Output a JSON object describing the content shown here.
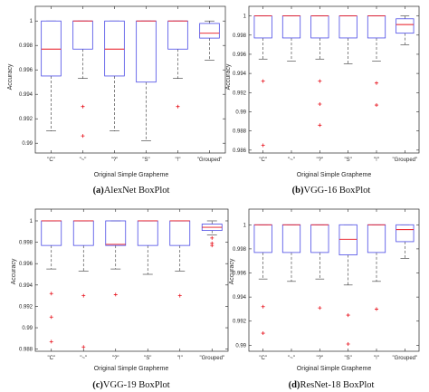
{
  "colors": {
    "box": "#4a4ae6",
    "median": "#e8141e",
    "whisker": "#333333",
    "outlier": "#e8141e"
  },
  "chart_data": [
    {
      "type": "box",
      "caption_letter": "(a)",
      "caption_text": "AlexNet BoxPlot",
      "xlabel": "Original Simple Grapheme",
      "ylabel": "Accuracy",
      "ylim": [
        0.9892,
        1.0012
      ],
      "yticks": [
        0.99,
        0.992,
        0.994,
        0.996,
        0.998,
        1
      ],
      "ytick_labels": [
        "0.99",
        "0.992",
        "0.994",
        "0.996",
        "0.998",
        "1"
      ],
      "categories": [
        "\"C\"",
        "\"~\"",
        "\"?\"",
        "\"S\"",
        "\"!\"",
        "\"Grouped\""
      ],
      "boxes": [
        {
          "whisker_low": 0.991,
          "q1": 0.9955,
          "median": 0.9977,
          "q3": 1.0,
          "whisker_high": 1.0,
          "outliers": []
        },
        {
          "whisker_low": 0.9953,
          "q1": 0.9977,
          "median": 1.0,
          "q3": 1.0,
          "whisker_high": 1.0,
          "outliers": [
            0.993,
            0.9906
          ]
        },
        {
          "whisker_low": 0.991,
          "q1": 0.9955,
          "median": 0.9977,
          "q3": 1.0,
          "whisker_high": 1.0,
          "outliers": []
        },
        {
          "whisker_low": 0.9902,
          "q1": 0.995,
          "median": 1.0,
          "q3": 1.0,
          "whisker_high": 1.0,
          "outliers": []
        },
        {
          "whisker_low": 0.9953,
          "q1": 0.9977,
          "median": 1.0,
          "q3": 1.0,
          "whisker_high": 1.0,
          "outliers": [
            0.993
          ]
        },
        {
          "whisker_low": 0.9968,
          "q1": 0.9986,
          "median": 0.999,
          "q3": 0.9998,
          "whisker_high": 1.0,
          "outliers": []
        }
      ]
    },
    {
      "type": "box",
      "caption_letter": "(b)",
      "caption_text": "VGG-16 BoxPlot",
      "xlabel": "Original Simple Grapheme",
      "ylabel": "Accuracy",
      "ylim": [
        0.9857,
        1.001
      ],
      "yticks": [
        0.986,
        0.988,
        0.99,
        0.992,
        0.994,
        0.996,
        0.998,
        1
      ],
      "ytick_labels": [
        "0.986",
        "0.988",
        "0.99",
        "0.992",
        "0.994",
        "0.996",
        "0.998",
        "1"
      ],
      "categories": [
        "\"C\"",
        "\"~\"",
        "\"?\"",
        "\"S\"",
        "\"!\"",
        "\"Grouped\""
      ],
      "boxes": [
        {
          "whisker_low": 0.9955,
          "q1": 0.9977,
          "median": 1.0,
          "q3": 1.0,
          "whisker_high": 1.0,
          "outliers": [
            0.9932,
            0.9865
          ]
        },
        {
          "whisker_low": 0.9953,
          "q1": 0.9977,
          "median": 1.0,
          "q3": 1.0,
          "whisker_high": 1.0,
          "outliers": []
        },
        {
          "whisker_low": 0.9955,
          "q1": 0.9977,
          "median": 1.0,
          "q3": 1.0,
          "whisker_high": 1.0,
          "outliers": [
            0.9932,
            0.9908,
            0.9886
          ]
        },
        {
          "whisker_low": 0.995,
          "q1": 0.9977,
          "median": 1.0,
          "q3": 1.0,
          "whisker_high": 1.0,
          "outliers": []
        },
        {
          "whisker_low": 0.9953,
          "q1": 0.9977,
          "median": 1.0,
          "q3": 1.0,
          "whisker_high": 1.0,
          "outliers": [
            0.993,
            0.9907
          ]
        },
        {
          "whisker_low": 0.997,
          "q1": 0.9982,
          "median": 0.9991,
          "q3": 0.9997,
          "whisker_high": 1.0,
          "outliers": []
        }
      ]
    },
    {
      "type": "box",
      "caption_letter": "(c)",
      "caption_text": "VGG-19 BoxPlot",
      "xlabel": "Original Simple Grapheme",
      "ylabel": "Accuracy",
      "ylim": [
        0.9878,
        1.0011
      ],
      "yticks": [
        0.988,
        0.99,
        0.992,
        0.994,
        0.996,
        0.998,
        1
      ],
      "ytick_labels": [
        "0.988",
        "0.99",
        "0.992",
        "0.994",
        "0.996",
        "0.998",
        "1"
      ],
      "categories": [
        "\"C\"",
        "\"~\"",
        "\"?\"",
        "\"S\"",
        "\"!\"",
        "\"Grouped\""
      ],
      "boxes": [
        {
          "whisker_low": 0.9955,
          "q1": 0.9977,
          "median": 1.0,
          "q3": 1.0,
          "whisker_high": 1.0,
          "outliers": [
            0.9932,
            0.991,
            0.9887
          ]
        },
        {
          "whisker_low": 0.9953,
          "q1": 0.9977,
          "median": 1.0,
          "q3": 1.0,
          "whisker_high": 1.0,
          "outliers": [
            0.993,
            0.9882
          ]
        },
        {
          "whisker_low": 0.9955,
          "q1": 0.9977,
          "median": 0.9978,
          "q3": 1.0,
          "whisker_high": 1.0,
          "outliers": [
            0.9931
          ]
        },
        {
          "whisker_low": 0.995,
          "q1": 0.9977,
          "median": 1.0,
          "q3": 1.0,
          "whisker_high": 1.0,
          "outliers": []
        },
        {
          "whisker_low": 0.9953,
          "q1": 0.9977,
          "median": 1.0,
          "q3": 1.0,
          "whisker_high": 1.0,
          "outliers": [
            0.993
          ]
        },
        {
          "whisker_low": 0.9987,
          "q1": 0.9991,
          "median": 0.9994,
          "q3": 0.9997,
          "whisker_high": 1.0,
          "outliers": [
            0.9984,
            0.9979,
            0.9977
          ]
        }
      ]
    },
    {
      "type": "box",
      "caption_letter": "(d)",
      "caption_text": "ResNet-18 BoxPlot",
      "xlabel": "Original Simple Grapheme",
      "ylabel": "Accuracy",
      "ylim": [
        0.9895,
        1.0013
      ],
      "yticks": [
        0.99,
        0.992,
        0.994,
        0.996,
        0.998,
        1
      ],
      "ytick_labels": [
        "0.99",
        "0.992",
        "0.994",
        "0.996",
        "0.998",
        "1"
      ],
      "categories": [
        "\"C\"",
        "\"~\"",
        "\"?\"",
        "\"S\"",
        "\"!\"",
        "\"Grouped\""
      ],
      "boxes": [
        {
          "whisker_low": 0.9955,
          "q1": 0.9977,
          "median": 1.0,
          "q3": 1.0,
          "whisker_high": 1.0,
          "outliers": [
            0.9932,
            0.991
          ]
        },
        {
          "whisker_low": 0.9953,
          "q1": 0.9977,
          "median": 1.0,
          "q3": 1.0,
          "whisker_high": 1.0,
          "outliers": []
        },
        {
          "whisker_low": 0.9955,
          "q1": 0.9977,
          "median": 1.0,
          "q3": 1.0,
          "whisker_high": 1.0,
          "outliers": [
            0.9931
          ]
        },
        {
          "whisker_low": 0.995,
          "q1": 0.9975,
          "median": 0.9988,
          "q3": 1.0,
          "whisker_high": 1.0,
          "outliers": [
            0.9925,
            0.9901
          ]
        },
        {
          "whisker_low": 0.9953,
          "q1": 0.9977,
          "median": 1.0,
          "q3": 1.0,
          "whisker_high": 1.0,
          "outliers": [
            0.993
          ]
        },
        {
          "whisker_low": 0.9972,
          "q1": 0.9986,
          "median": 0.9996,
          "q3": 1.0,
          "whisker_high": 1.0,
          "outliers": []
        }
      ]
    }
  ]
}
